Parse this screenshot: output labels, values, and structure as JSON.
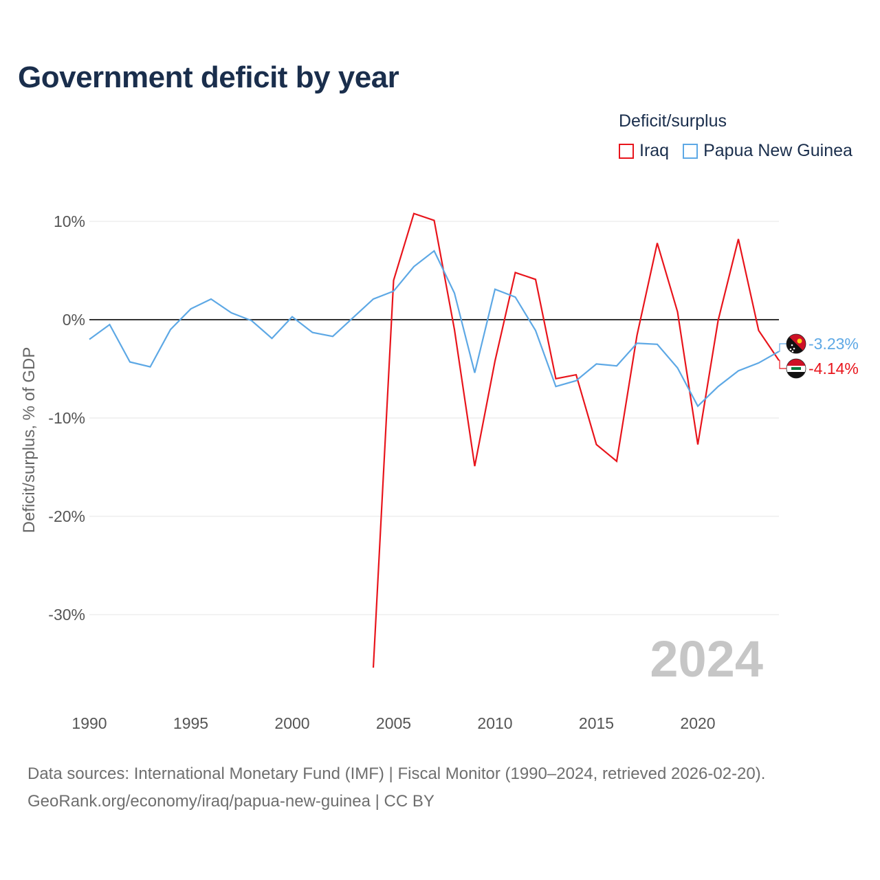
{
  "chart_data": {
    "type": "line",
    "title": "Government deficit by year",
    "ylabel": "Deficit/surplus, % of GDP",
    "xlabel": "",
    "xlim": [
      1990,
      2024
    ],
    "ylim": [
      -37,
      13
    ],
    "yticks": [
      10,
      0,
      -10,
      -20,
      -30
    ],
    "ytick_labels": [
      "10%",
      "0%",
      "-10%",
      "-20%",
      "-30%"
    ],
    "xticks": [
      1990,
      1995,
      2000,
      2005,
      2010,
      2015,
      2020
    ],
    "xtick_labels": [
      "1990",
      "1995",
      "2000",
      "2005",
      "2010",
      "2015",
      "2020"
    ],
    "legend_title": "Deficit/surplus",
    "legend_position": "top-right",
    "year_watermark": "2024",
    "series": [
      {
        "name": "Iraq",
        "color": "#e8141b",
        "end_label": "-4.14%",
        "flag_icon": "iraq-flag-icon",
        "x": [
          2004,
          2005,
          2006,
          2007,
          2008,
          2009,
          2010,
          2011,
          2012,
          2013,
          2014,
          2015,
          2016,
          2017,
          2018,
          2019,
          2020,
          2021,
          2022,
          2023,
          2024
        ],
        "values": [
          -35.4,
          4.0,
          10.8,
          10.1,
          -1.0,
          -14.9,
          -4.2,
          4.8,
          4.1,
          -6.0,
          -5.6,
          -12.7,
          -14.4,
          -1.6,
          7.8,
          0.8,
          -12.7,
          -0.1,
          8.2,
          -1.1,
          -4.14
        ]
      },
      {
        "name": "Papua New Guinea",
        "color": "#5da8e5",
        "end_label": "-3.23%",
        "flag_icon": "png-flag-icon",
        "x": [
          1990,
          1991,
          1992,
          1993,
          1994,
          1995,
          1996,
          1997,
          1998,
          1999,
          2000,
          2001,
          2002,
          2003,
          2004,
          2005,
          2006,
          2007,
          2008,
          2009,
          2010,
          2011,
          2012,
          2013,
          2014,
          2015,
          2016,
          2017,
          2018,
          2019,
          2020,
          2021,
          2022,
          2023,
          2024
        ],
        "values": [
          -2.0,
          -0.5,
          -4.3,
          -4.8,
          -1.0,
          1.1,
          2.1,
          0.7,
          -0.1,
          -1.9,
          0.3,
          -1.3,
          -1.7,
          0.2,
          2.1,
          2.9,
          5.4,
          7.0,
          2.7,
          -5.4,
          3.1,
          2.3,
          -1.1,
          -6.8,
          -6.2,
          -4.5,
          -4.7,
          -2.4,
          -2.5,
          -4.9,
          -8.8,
          -6.8,
          -5.2,
          -4.4,
          -3.23
        ]
      }
    ]
  },
  "footer": {
    "sources": "Data sources: International Monetary Fund (IMF) | Fiscal Monitor (1990–2024, retrieved 2026-02-20).",
    "url": "GeoRank.org/economy/iraq/papua-new-guinea | CC BY"
  }
}
